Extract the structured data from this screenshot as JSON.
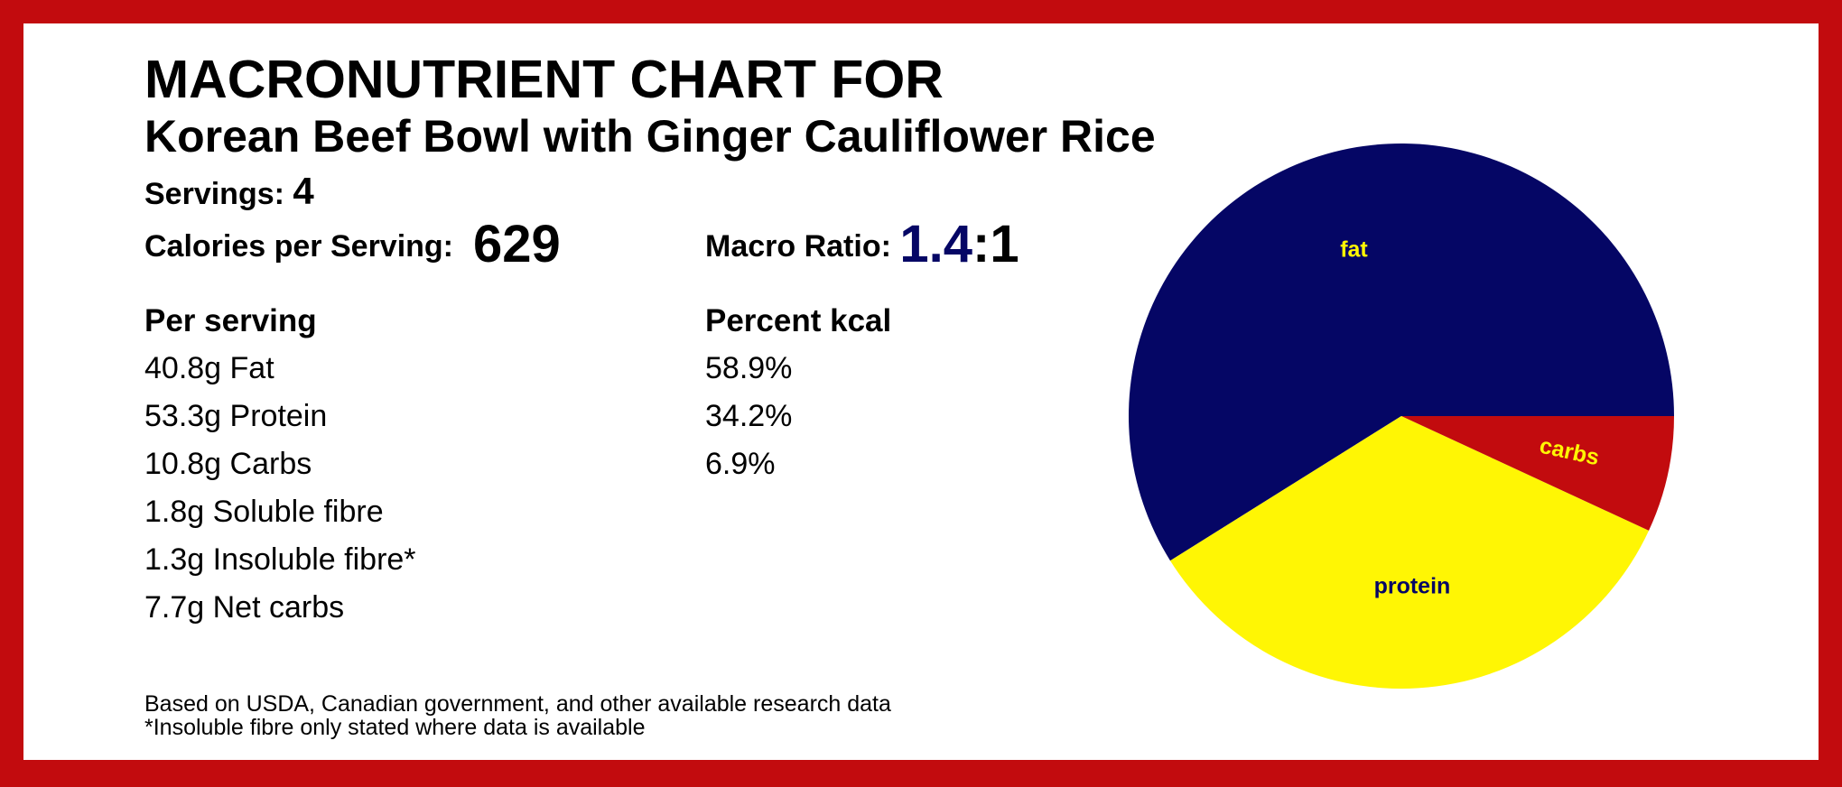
{
  "header": {
    "title_line1": "MACRONUTRIENT CHART FOR",
    "title_line2": "Korean Beef Bowl with Ginger Cauliflower Rice"
  },
  "summary": {
    "servings_label": "Servings:",
    "servings_value": "4",
    "calories_label": "Calories per Serving:",
    "calories_value": "629",
    "ratio_label": "Macro Ratio:",
    "ratio_first": "1.4",
    "ratio_rest": ":1"
  },
  "per_serving": {
    "heading": "Per serving",
    "items": [
      "40.8g Fat",
      "53.3g Protein",
      "10.8g Carbs",
      "1.8g Soluble fibre",
      "1.3g Insoluble fibre*",
      "7.7g Net carbs"
    ]
  },
  "percent_kcal": {
    "heading": "Percent kcal",
    "items": [
      "58.9%",
      "34.2%",
      "6.9%"
    ]
  },
  "footnotes": [
    "Based on USDA, Canadian government, and other available research data",
    "*Insoluble fibre only stated where data is available"
  ],
  "chart_data": {
    "type": "pie",
    "categories": [
      "fat",
      "protein",
      "carbs"
    ],
    "values": [
      58.9,
      34.2,
      6.9
    ],
    "colors": [
      "#050665",
      "#fff604",
      "#c20b0e"
    ],
    "label_colors": [
      "#fff604",
      "#050665",
      "#fff604"
    ]
  }
}
